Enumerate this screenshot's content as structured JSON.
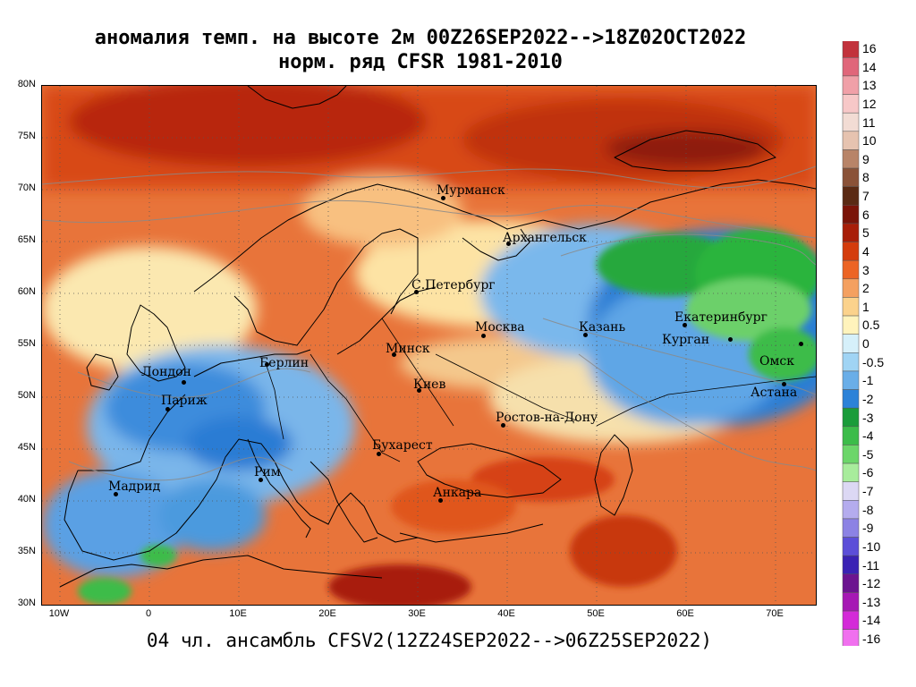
{
  "title": {
    "line1": "аномалия темп. на высоте 2м 00Z26SEP2022-->18Z02OCT2022",
    "line2": "норм. ряд CFSR 1981-2010"
  },
  "footer": "04 чл. ансамбль CFSV2(12Z24SEP2022-->06Z25SEP2022)",
  "axes": {
    "lat_labels": [
      "80N",
      "75N",
      "70N",
      "65N",
      "60N",
      "55N",
      "50N",
      "45N",
      "40N",
      "35N",
      "30N"
    ],
    "lon_labels": [
      "10W",
      "0",
      "10E",
      "20E",
      "30E",
      "40E",
      "50E",
      "60E",
      "70E"
    ]
  },
  "cities": [
    {
      "name": "Мурманск"
    },
    {
      "name": "Архангельск"
    },
    {
      "name": "С.Петербург"
    },
    {
      "name": "Москва"
    },
    {
      "name": "Казань"
    },
    {
      "name": "Екатеринбург"
    },
    {
      "name": "Курган"
    },
    {
      "name": "Омск"
    },
    {
      "name": "Астана"
    },
    {
      "name": "Минск"
    },
    {
      "name": "Берлин"
    },
    {
      "name": "Лондон"
    },
    {
      "name": "Париж"
    },
    {
      "name": "Киев"
    },
    {
      "name": "Ростов-на-Дону"
    },
    {
      "name": "Бухарест"
    },
    {
      "name": "Рим"
    },
    {
      "name": "Мадрид"
    },
    {
      "name": "Анкара"
    }
  ],
  "legend": {
    "labels": [
      "16",
      "14",
      "13",
      "12",
      "11",
      "10",
      "9",
      "8",
      "7",
      "6",
      "5",
      "4",
      "3",
      "2",
      "1",
      "0.5",
      "0",
      "-0.5",
      "-1",
      "-2",
      "-3",
      "-4",
      "-5",
      "-6",
      "-7",
      "-8",
      "-9",
      "-10",
      "-11",
      "-12",
      "-13",
      "-14",
      "-16"
    ],
    "colors": [
      "#c2323c",
      "#e0667a",
      "#f0a0a8",
      "#f7c8c8",
      "#f2dcd4",
      "#e6c3b0",
      "#b88468",
      "#8a5238",
      "#5a2a14",
      "#7a1408",
      "#a81e08",
      "#d43c0c",
      "#ec6424",
      "#f4a060",
      "#fbd28c",
      "#fff3bc",
      "#d6f0fa",
      "#a0d4f4",
      "#6aaee8",
      "#2c82d8",
      "#1a9c3a",
      "#3cbc4a",
      "#6cd66a",
      "#a8ec9c",
      "#dcd8f4",
      "#b4acee",
      "#8c82e4",
      "#5c4ed8",
      "#3a22b4",
      "#6c1490",
      "#a618b4",
      "#d42ad8",
      "#f070ee"
    ]
  }
}
